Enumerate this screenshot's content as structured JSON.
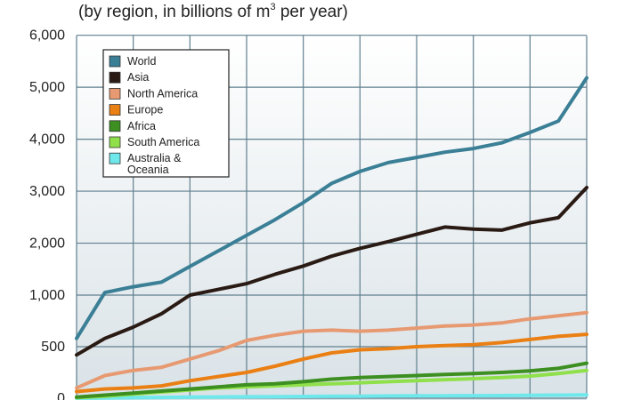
{
  "subtitle": {
    "prefix": "(by region, in billions of m",
    "superscript": "3",
    "suffix": " per year)"
  },
  "chart_data": {
    "type": "line",
    "title": "",
    "subtitle": "(by region, in billions of m3 per year)",
    "xlabel": "",
    "ylabel": "",
    "y_ticks": [
      0,
      500,
      1000,
      2000,
      3000,
      4000,
      5000,
      6000
    ],
    "y_tick_labels": [
      "0",
      "500",
      "1,000",
      "2,000",
      "3,000",
      "4,000",
      "5,000",
      "6,000"
    ],
    "y_scale_note": "non-linear axis: 0-1,000 section is expanded",
    "x": [
      0,
      1,
      2,
      3,
      4,
      5,
      6,
      7,
      8,
      9,
      10,
      11,
      12,
      13,
      14,
      15,
      16,
      17,
      18
    ],
    "grid": true,
    "legend_position": "top-left",
    "series": [
      {
        "name": "World",
        "color": "#3a7f96",
        "values": [
          580,
          1050,
          1160,
          1250,
          1550,
          1850,
          2150,
          2450,
          2780,
          3150,
          3380,
          3550,
          3650,
          3750,
          3820,
          3930,
          4130,
          4350,
          5180
        ]
      },
      {
        "name": "Asia",
        "color": "#2a1a14",
        "values": [
          420,
          580,
          690,
          820,
          1000,
          1110,
          1220,
          1400,
          1560,
          1750,
          1900,
          2030,
          2170,
          2310,
          2270,
          2250,
          2390,
          2490,
          3070
        ]
      },
      {
        "name": "North America",
        "color": "#e79a72",
        "values": [
          100,
          220,
          270,
          300,
          380,
          460,
          560,
          610,
          650,
          660,
          650,
          660,
          680,
          700,
          710,
          730,
          770,
          800,
          830
        ]
      },
      {
        "name": "Europe",
        "color": "#ea7f14",
        "values": [
          65,
          90,
          100,
          120,
          170,
          210,
          250,
          310,
          380,
          440,
          470,
          480,
          500,
          510,
          520,
          540,
          570,
          600,
          620
        ]
      },
      {
        "name": "Africa",
        "color": "#3c8f20",
        "values": [
          10,
          30,
          50,
          70,
          90,
          110,
          130,
          140,
          160,
          185,
          200,
          210,
          220,
          230,
          240,
          250,
          265,
          290,
          340
        ]
      },
      {
        "name": "South America",
        "color": "#8fe04a",
        "values": [
          5,
          20,
          40,
          60,
          80,
          100,
          110,
          120,
          130,
          140,
          150,
          160,
          170,
          180,
          190,
          200,
          215,
          240,
          270
        ]
      },
      {
        "name": "Australia & Oceania",
        "color": "#6fe8ec",
        "values": [
          0,
          3,
          5,
          8,
          10,
          12,
          14,
          15,
          17,
          19,
          20,
          22,
          23,
          24,
          25,
          26,
          28,
          30,
          32
        ]
      }
    ]
  }
}
